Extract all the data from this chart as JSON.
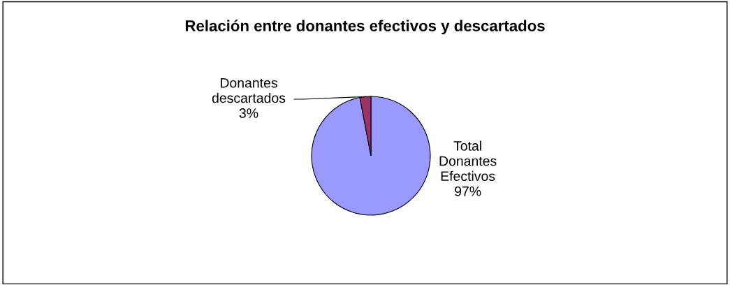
{
  "chart_data": {
    "type": "pie",
    "title": "Relación entre donantes efectivos y descartados",
    "categories": [
      "Total Donantes Efectivos",
      "Donantes descartados"
    ],
    "values": [
      97,
      3
    ],
    "value_labels": [
      "97%",
      "3%"
    ],
    "colors": [
      "#9999ff",
      "#993366"
    ],
    "legend": false
  }
}
